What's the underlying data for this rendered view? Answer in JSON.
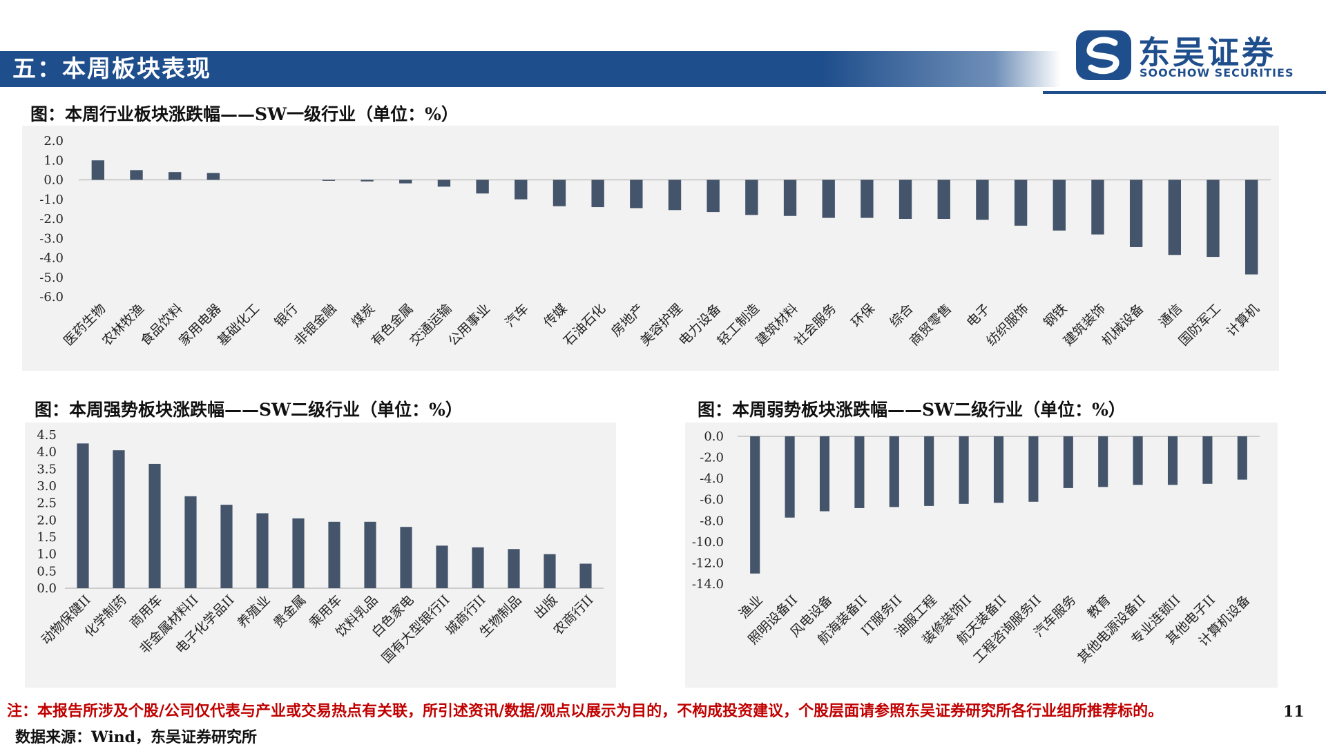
{
  "header": {
    "title": "五：本周板块表现"
  },
  "logo": {
    "name_cn": "东吴证券",
    "name_en": "SOOCHOW SECURITIES"
  },
  "charts": [
    {
      "id": "sw1",
      "title": "图：本周行业板块涨跌幅——SW一级行业（单位：%）",
      "chart_data": {
        "type": "bar",
        "categories": [
          "医药生物",
          "农林牧渔",
          "食品饮料",
          "家用电器",
          "基础化工",
          "银行",
          "非银金融",
          "煤炭",
          "有色金属",
          "交通运输",
          "公用事业",
          "汽车",
          "传媒",
          "石油石化",
          "房地产",
          "美容护理",
          "电力设备",
          "轻工制造",
          "建筑材料",
          "社会服务",
          "环保",
          "综合",
          "商贸零售",
          "电子",
          "纺织服饰",
          "钢铁",
          "建筑装饰",
          "机械设备",
          "通信",
          "国防军工",
          "计算机"
        ],
        "values": [
          1.0,
          0.5,
          0.4,
          0.35,
          0.0,
          0.0,
          -0.05,
          -0.08,
          -0.18,
          -0.35,
          -0.7,
          -1.0,
          -1.35,
          -1.4,
          -1.45,
          -1.55,
          -1.65,
          -1.8,
          -1.85,
          -1.95,
          -1.95,
          -2.0,
          -2.0,
          -2.05,
          -2.35,
          -2.6,
          -2.8,
          -3.45,
          -3.85,
          -3.95,
          -4.85
        ],
        "ylim": [
          -6.0,
          2.0
        ],
        "yticks": [
          "2.0",
          "1.0",
          "0.0",
          "-1.0",
          "-2.0",
          "-3.0",
          "-4.0",
          "-5.0",
          "-6.0"
        ],
        "grid": false,
        "bar_color": "#44546a"
      }
    },
    {
      "id": "strong",
      "title": "图：本周强势板块涨跌幅——SW二级行业（单位：%）",
      "chart_data": {
        "type": "bar",
        "categories": [
          "动物保健II",
          "化学制药",
          "商用车",
          "非金属材料II",
          "电子化学品II",
          "养殖业",
          "贵金属",
          "乘用车",
          "饮料乳品",
          "白色家电",
          "国有大型银行II",
          "城商行II",
          "生物制品",
          "出版",
          "农商行II"
        ],
        "values": [
          4.25,
          4.05,
          3.65,
          2.7,
          2.45,
          2.2,
          2.05,
          1.95,
          1.95,
          1.8,
          1.25,
          1.2,
          1.15,
          1.0,
          0.72
        ],
        "ylim": [
          0.0,
          4.5
        ],
        "yticks": [
          "4.5",
          "4.0",
          "3.5",
          "3.0",
          "2.5",
          "2.0",
          "1.5",
          "1.0",
          "0.5",
          "0.0"
        ],
        "grid": false,
        "bar_color": "#44546a"
      }
    },
    {
      "id": "weak",
      "title": "图：本周弱势板块涨跌幅——SW二级行业（单位：%）",
      "chart_data": {
        "type": "bar",
        "categories": [
          "渔业",
          "照明设备II",
          "风电设备",
          "航海装备II",
          "IT服务II",
          "油服工程",
          "装修装饰II",
          "航天装备II",
          "工程咨询服务II",
          "汽车服务",
          "教育",
          "其他电源设备II",
          "专业连锁II",
          "其他电子II",
          "计算机设备"
        ],
        "values": [
          -13.0,
          -7.7,
          -7.1,
          -6.8,
          -6.7,
          -6.6,
          -6.4,
          -6.3,
          -6.2,
          -4.9,
          -4.8,
          -4.6,
          -4.6,
          -4.5,
          -4.1
        ],
        "ylim": [
          -14.0,
          0.0
        ],
        "yticks": [
          "0.0",
          "-2.0",
          "-4.0",
          "-6.0",
          "-8.0",
          "-10.0",
          "-12.0",
          "-14.0"
        ],
        "grid": false,
        "bar_color": "#44546a"
      }
    }
  ],
  "note": "注：本报告所涉及个股/公司仅代表与产业或交易热点有关联，所引述资讯/数据/观点以展示为目的，不构成投资建议，个股层面请参照东吴证券研究所各行业组所推荐标的。",
  "source": "数据来源：Wind，东吴证券研究所",
  "page_number": "11"
}
